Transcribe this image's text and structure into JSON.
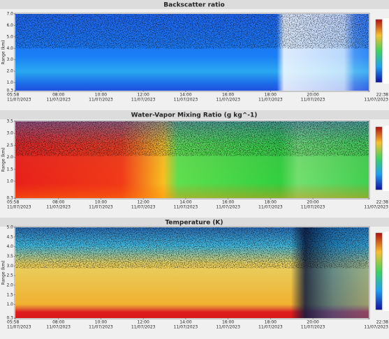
{
  "panels": [
    {
      "title": "Backscatter ratio",
      "y_label": "Range (km)",
      "yticks": [
        "7.0",
        "6.0",
        "5.0",
        "4.0",
        "3.0",
        "2.0",
        "1.0",
        "0.3"
      ]
    },
    {
      "title": "Water-Vapor Mixing Ratio  (g kg^-1)",
      "y_label": "Range (km)",
      "yticks": [
        "3.5",
        "3.0",
        "2.5",
        "2.0",
        "1.5",
        "1.0",
        "0.3"
      ]
    },
    {
      "title": "Temperature (K)",
      "y_label": "Range (km)",
      "yticks": [
        "5.0",
        "4.5",
        "4.0",
        "3.5",
        "3.0",
        "2.5",
        "2.0",
        "1.5",
        "1.0",
        "0.3"
      ]
    }
  ],
  "x_axis": {
    "times": [
      "05:58",
      "08:00",
      "10:00",
      "12:00",
      "14:00",
      "16:00",
      "18:00",
      "20:00",
      "22:38"
    ],
    "date": "11/07/2023"
  }
}
